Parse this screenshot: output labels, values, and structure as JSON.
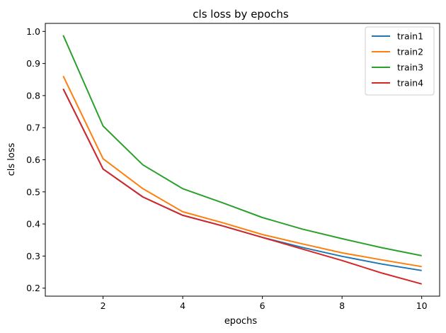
{
  "chart_data": {
    "type": "line",
    "title": "cls loss by epochs",
    "xlabel": "epochs",
    "ylabel": "cls loss",
    "xlim": [
      0.55,
      10.45
    ],
    "ylim": [
      0.175,
      1.025
    ],
    "xticks": [
      2,
      4,
      6,
      8,
      10
    ],
    "yticks": [
      0.2,
      0.3,
      0.4,
      0.5,
      0.6,
      0.7,
      0.8,
      0.9,
      1.0
    ],
    "grid": false,
    "legend_position": "top-right",
    "x": [
      1,
      2,
      3,
      4,
      5,
      6,
      7,
      8,
      9,
      10
    ],
    "series": [
      {
        "name": "train1",
        "color": "#1f77b4",
        "values": [
          0.821,
          0.571,
          0.484,
          0.427,
          0.394,
          0.358,
          0.327,
          0.299,
          0.275,
          0.255
        ]
      },
      {
        "name": "train2",
        "color": "#ff7f0e",
        "values": [
          0.861,
          0.603,
          0.51,
          0.438,
          0.404,
          0.367,
          0.338,
          0.31,
          0.288,
          0.267
        ]
      },
      {
        "name": "train3",
        "color": "#2ca02c",
        "values": [
          0.988,
          0.705,
          0.584,
          0.51,
          0.466,
          0.42,
          0.384,
          0.354,
          0.326,
          0.301
        ]
      },
      {
        "name": "train4",
        "color": "#d62728",
        "values": [
          0.821,
          0.571,
          0.484,
          0.427,
          0.394,
          0.358,
          0.322,
          0.286,
          0.247,
          0.213
        ]
      }
    ]
  }
}
